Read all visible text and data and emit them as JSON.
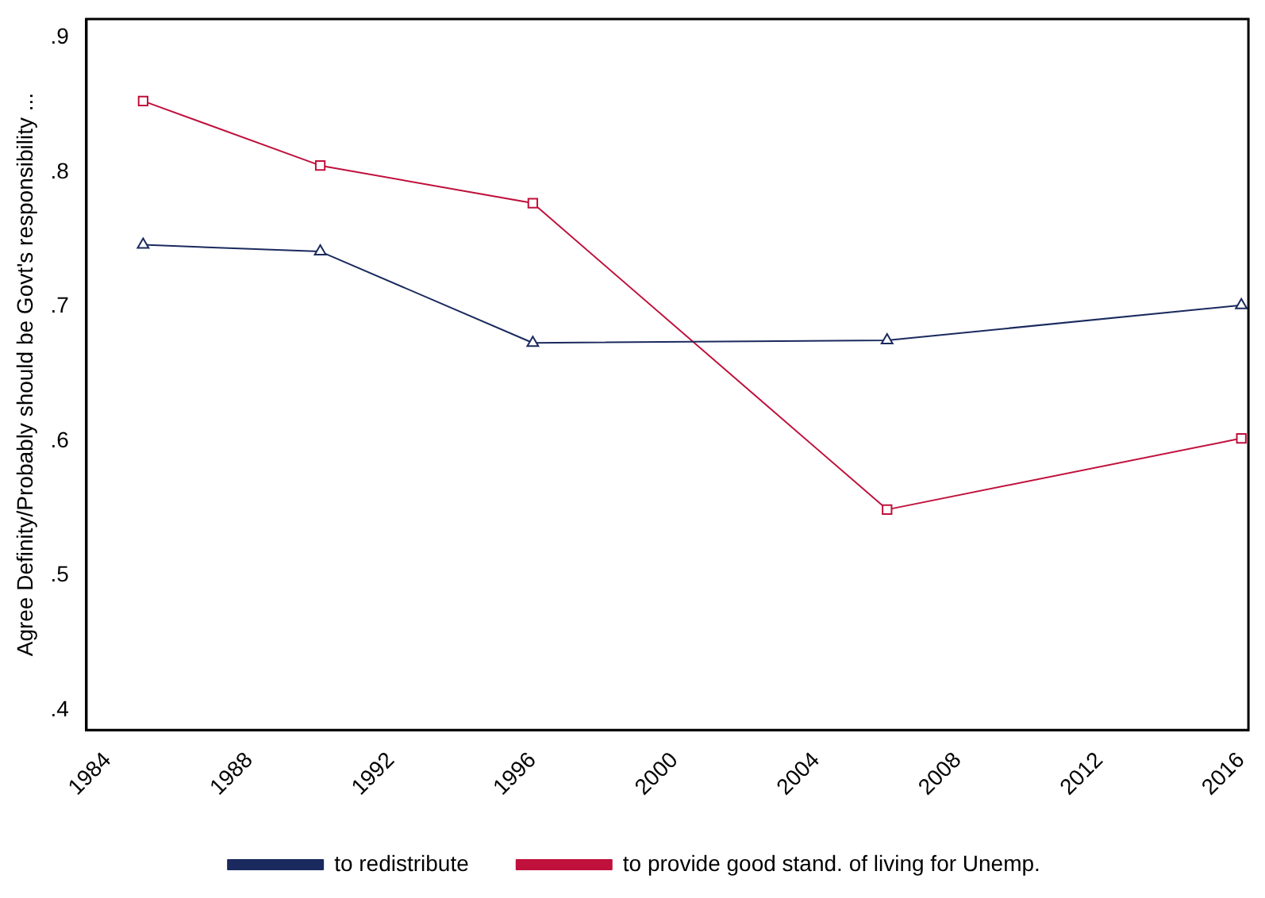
{
  "chart_data": {
    "type": "line",
    "ylabel": "Agree Definity/Probably should be Govt's responsibility ...",
    "xlim": [
      1983.4,
      2016.2
    ],
    "xticks": [
      1984,
      1988,
      1992,
      1996,
      2000,
      2004,
      2008,
      2012,
      2016
    ],
    "ylim": [
      0.385,
      0.914
    ],
    "yticks": [
      {
        "value": 0.4,
        "label": ".4"
      },
      {
        "value": 0.5,
        "label": ".5"
      },
      {
        "value": 0.6,
        "label": ".6"
      },
      {
        "value": 0.7,
        "label": ".7"
      },
      {
        "value": 0.8,
        "label": ".8"
      },
      {
        "value": 0.9,
        "label": ".9"
      }
    ],
    "grid": false,
    "legend": "bottom",
    "series": [
      {
        "name": "to redistribute",
        "color": "#1a2a5e",
        "marker": "triangle",
        "x": [
          1985,
          1990,
          1996,
          2006,
          2016
        ],
        "values": [
          0.746,
          0.741,
          0.673,
          0.675,
          0.701
        ]
      },
      {
        "name": "to provide good stand. of living for Unemp.",
        "color": "#c0103c",
        "marker": "square",
        "x": [
          1985,
          1990,
          1996,
          2006,
          2016
        ],
        "values": [
          0.853,
          0.805,
          0.777,
          0.549,
          0.602
        ]
      }
    ]
  }
}
